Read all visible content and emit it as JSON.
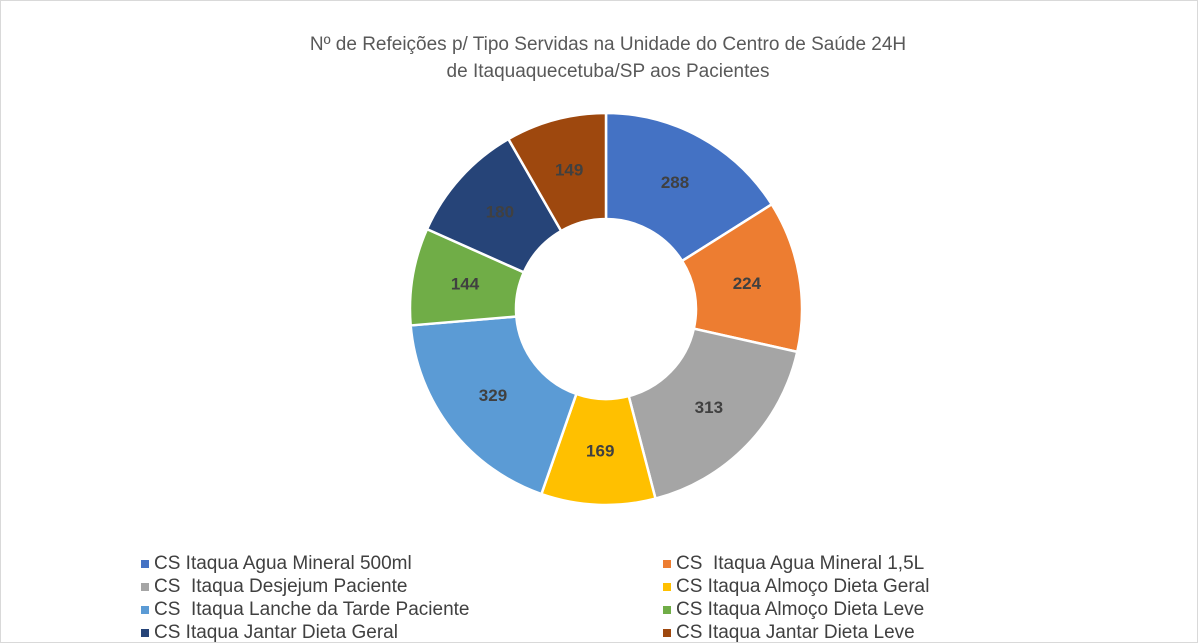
{
  "chart_data": {
    "type": "donut",
    "title": [
      "Nº de Refeições p/ Tipo Servidas na Unidade do Centro de Saúde 24H",
      "de Itaquaquecetuba/SP aos Pacientes"
    ],
    "categories": [
      "CS Itaqua Agua Mineral 500ml",
      "CS  Itaqua Agua Mineral 1,5L",
      "CS  Itaqua Desjejum Paciente",
      "CS Itaqua Almoço Dieta Geral",
      "CS  Itaqua Lanche da Tarde Paciente",
      "CS Itaqua Almoço Dieta Leve",
      "CS Itaqua Jantar Dieta Geral",
      "CS Itaqua Jantar Dieta Leve"
    ],
    "values": [
      288,
      224,
      313,
      169,
      329,
      144,
      180,
      149
    ],
    "colors": [
      "#4472c4",
      "#ed7d31",
      "#a5a5a5",
      "#ffc000",
      "#5b9bd5",
      "#70ad47",
      "#264478",
      "#9e480e"
    ],
    "legend": "bottom"
  }
}
